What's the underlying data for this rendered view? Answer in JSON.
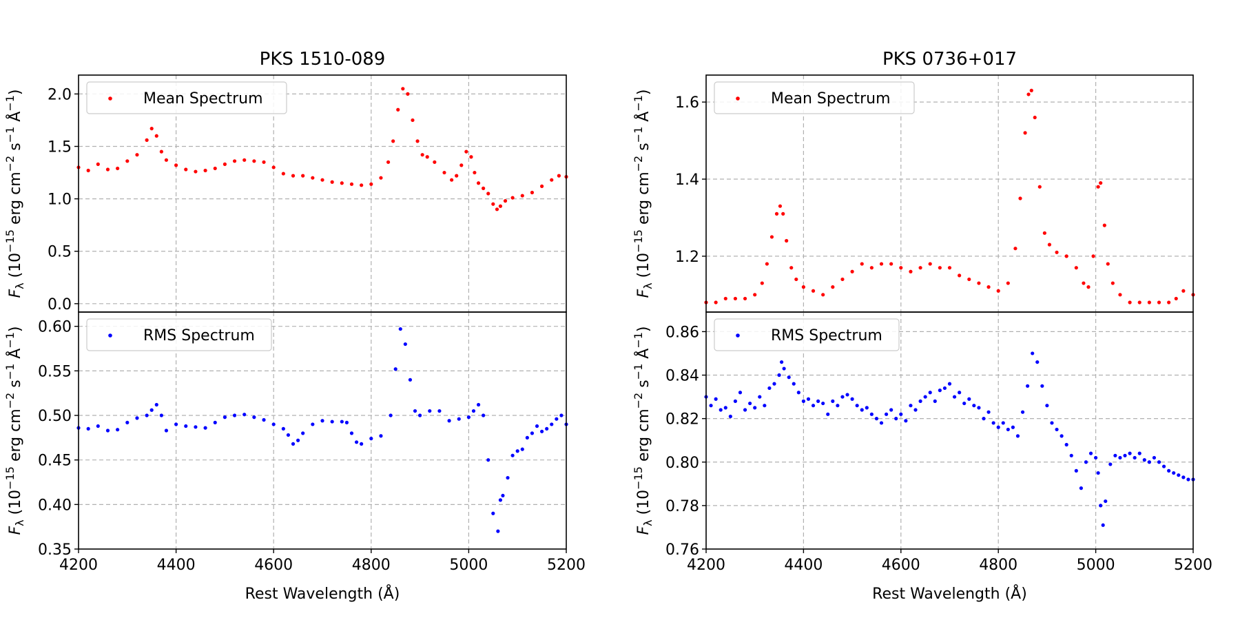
{
  "colors": {
    "mean": "#ff0000",
    "rms": "#0000ff",
    "grid": "#b0b0b0"
  },
  "chart_data": [
    {
      "type": "scatter",
      "title": "PKS 1510-089",
      "xlabel": "Rest Wavelength (Å)",
      "xlim": [
        4200,
        5200
      ],
      "xticks": [
        4200,
        4400,
        4600,
        4800,
        5000,
        5200
      ],
      "xtick_labels": [
        "4200",
        "4400",
        "4600",
        "4800",
        "5000",
        "5200"
      ],
      "panels": [
        {
          "id": "mean",
          "legend": "Mean Spectrum",
          "legend_position": "top-left",
          "ylabel": "F_λ (10^−15 erg cm^−2 s^−1 Å^−1)",
          "ylim": [
            -0.08,
            2.18
          ],
          "yticks": [
            0.0,
            0.5,
            1.0,
            1.5,
            2.0
          ],
          "ytick_labels": [
            "0.0",
            "0.5",
            "1.0",
            "1.5",
            "2.0"
          ],
          "series": {
            "name": "Mean Spectrum",
            "x": [
              4200,
              4220,
              4240,
              4260,
              4280,
              4300,
              4320,
              4340,
              4350,
              4360,
              4370,
              4380,
              4400,
              4420,
              4440,
              4460,
              4480,
              4500,
              4520,
              4540,
              4560,
              4580,
              4600,
              4620,
              4640,
              4660,
              4680,
              4700,
              4720,
              4740,
              4760,
              4780,
              4800,
              4820,
              4835,
              4845,
              4855,
              4865,
              4875,
              4885,
              4895,
              4905,
              4915,
              4930,
              4950,
              4965,
              4975,
              4985,
              4995,
              5005,
              5012,
              5020,
              5030,
              5040,
              5050,
              5058,
              5065,
              5075,
              5090,
              5110,
              5130,
              5150,
              5170,
              5185,
              5200
            ],
            "y": [
              1.3,
              1.27,
              1.33,
              1.28,
              1.29,
              1.36,
              1.42,
              1.56,
              1.67,
              1.6,
              1.45,
              1.37,
              1.32,
              1.28,
              1.26,
              1.27,
              1.29,
              1.33,
              1.36,
              1.37,
              1.36,
              1.35,
              1.3,
              1.24,
              1.22,
              1.22,
              1.2,
              1.18,
              1.16,
              1.15,
              1.14,
              1.13,
              1.14,
              1.2,
              1.35,
              1.55,
              1.85,
              2.05,
              2.0,
              1.75,
              1.55,
              1.42,
              1.4,
              1.35,
              1.25,
              1.18,
              1.22,
              1.32,
              1.45,
              1.4,
              1.25,
              1.15,
              1.1,
              1.05,
              0.95,
              0.9,
              0.93,
              0.98,
              1.01,
              1.03,
              1.06,
              1.12,
              1.18,
              1.22,
              1.21
            ]
          }
        },
        {
          "id": "rms",
          "legend": "RMS Spectrum",
          "legend_position": "top-left",
          "ylabel": "F_λ (10^−15 erg cm^−2 s^−1 Å^−1)",
          "ylim": [
            0.35,
            0.616
          ],
          "yticks": [
            0.35,
            0.4,
            0.45,
            0.5,
            0.55,
            0.6
          ],
          "ytick_labels": [
            "0.35",
            "0.40",
            "0.45",
            "0.50",
            "0.55",
            "0.60"
          ],
          "series": {
            "name": "RMS Spectrum",
            "x": [
              4200,
              4220,
              4240,
              4260,
              4280,
              4300,
              4320,
              4340,
              4350,
              4360,
              4370,
              4380,
              4400,
              4420,
              4440,
              4460,
              4480,
              4500,
              4520,
              4540,
              4560,
              4580,
              4600,
              4620,
              4630,
              4640,
              4650,
              4660,
              4680,
              4700,
              4720,
              4740,
              4750,
              4760,
              4770,
              4780,
              4800,
              4820,
              4840,
              4850,
              4860,
              4870,
              4880,
              4890,
              4900,
              4920,
              4940,
              4960,
              4980,
              5000,
              5010,
              5020,
              5030,
              5040,
              5050,
              5060,
              5065,
              5070,
              5080,
              5090,
              5100,
              5110,
              5120,
              5130,
              5140,
              5150,
              5160,
              5170,
              5180,
              5190,
              5200
            ],
            "y": [
              0.486,
              0.485,
              0.488,
              0.483,
              0.484,
              0.492,
              0.497,
              0.5,
              0.506,
              0.512,
              0.5,
              0.483,
              0.49,
              0.488,
              0.487,
              0.486,
              0.492,
              0.498,
              0.5,
              0.501,
              0.498,
              0.495,
              0.49,
              0.485,
              0.478,
              0.468,
              0.472,
              0.48,
              0.49,
              0.494,
              0.493,
              0.493,
              0.492,
              0.48,
              0.47,
              0.468,
              0.474,
              0.477,
              0.5,
              0.552,
              0.597,
              0.58,
              0.54,
              0.505,
              0.5,
              0.505,
              0.505,
              0.494,
              0.496,
              0.498,
              0.505,
              0.512,
              0.5,
              0.45,
              0.39,
              0.37,
              0.405,
              0.41,
              0.43,
              0.455,
              0.46,
              0.462,
              0.475,
              0.48,
              0.488,
              0.482,
              0.485,
              0.49,
              0.496,
              0.5,
              0.49
            ]
          }
        }
      ]
    },
    {
      "type": "scatter",
      "title": "PKS 0736+017",
      "xlabel": "Rest Wavelength (Å)",
      "xlim": [
        4200,
        5200
      ],
      "xticks": [
        4200,
        4400,
        4600,
        4800,
        5000,
        5200
      ],
      "xtick_labels": [
        "4200",
        "4400",
        "4600",
        "4800",
        "5000",
        "5200"
      ],
      "panels": [
        {
          "id": "mean",
          "legend": "Mean Spectrum",
          "legend_position": "top-left",
          "ylabel": "F_λ (10^−15 erg cm^−2 s^−1 Å^−1)",
          "ylim": [
            1.055,
            1.67
          ],
          "yticks": [
            1.2,
            1.4,
            1.6
          ],
          "ytick_labels": [
            "1.2",
            "1.4",
            "1.6"
          ],
          "series": {
            "name": "Mean Spectrum",
            "x": [
              4200,
              4220,
              4240,
              4260,
              4280,
              4300,
              4315,
              4325,
              4335,
              4345,
              4352,
              4358,
              4365,
              4375,
              4385,
              4400,
              4420,
              4440,
              4460,
              4480,
              4500,
              4520,
              4540,
              4560,
              4580,
              4600,
              4620,
              4640,
              4660,
              4680,
              4700,
              4720,
              4740,
              4760,
              4780,
              4800,
              4820,
              4835,
              4845,
              4855,
              4862,
              4868,
              4875,
              4885,
              4895,
              4905,
              4920,
              4940,
              4960,
              4975,
              4985,
              4995,
              5005,
              5010,
              5018,
              5025,
              5035,
              5050,
              5070,
              5090,
              5110,
              5130,
              5150,
              5165,
              5180,
              5200
            ],
            "y": [
              1.08,
              1.08,
              1.09,
              1.09,
              1.09,
              1.1,
              1.13,
              1.18,
              1.25,
              1.31,
              1.33,
              1.31,
              1.24,
              1.17,
              1.14,
              1.12,
              1.11,
              1.1,
              1.12,
              1.14,
              1.16,
              1.18,
              1.17,
              1.18,
              1.18,
              1.17,
              1.16,
              1.17,
              1.18,
              1.17,
              1.17,
              1.15,
              1.14,
              1.13,
              1.12,
              1.11,
              1.13,
              1.22,
              1.35,
              1.52,
              1.62,
              1.63,
              1.56,
              1.38,
              1.26,
              1.23,
              1.21,
              1.2,
              1.17,
              1.13,
              1.12,
              1.2,
              1.38,
              1.39,
              1.28,
              1.18,
              1.13,
              1.1,
              1.08,
              1.08,
              1.08,
              1.08,
              1.08,
              1.09,
              1.11,
              1.1
            ]
          }
        },
        {
          "id": "rms",
          "legend": "RMS Spectrum",
          "legend_position": "top-left",
          "ylabel": "F_λ (10^−15 erg cm^−2 s^−1 Å^−1)",
          "ylim": [
            0.76,
            0.869
          ],
          "yticks": [
            0.76,
            0.78,
            0.8,
            0.82,
            0.84,
            0.86
          ],
          "ytick_labels": [
            "0.76",
            "0.78",
            "0.80",
            "0.82",
            "0.84",
            "0.86"
          ],
          "series": {
            "name": "RMS Spectrum",
            "x": [
              4200,
              4210,
              4220,
              4230,
              4240,
              4250,
              4260,
              4270,
              4280,
              4290,
              4300,
              4310,
              4320,
              4330,
              4340,
              4350,
              4355,
              4360,
              4370,
              4380,
              4390,
              4400,
              4410,
              4420,
              4430,
              4440,
              4450,
              4460,
              4470,
              4480,
              4490,
              4500,
              4510,
              4520,
              4530,
              4540,
              4550,
              4560,
              4570,
              4580,
              4590,
              4600,
              4610,
              4620,
              4630,
              4640,
              4650,
              4660,
              4670,
              4680,
              4690,
              4700,
              4710,
              4720,
              4730,
              4740,
              4750,
              4760,
              4770,
              4780,
              4790,
              4800,
              4810,
              4820,
              4830,
              4840,
              4850,
              4860,
              4870,
              4880,
              4890,
              4900,
              4910,
              4920,
              4930,
              4940,
              4950,
              4960,
              4970,
              4980,
              4990,
              5000,
              5005,
              5010,
              5015,
              5020,
              5030,
              5040,
              5050,
              5060,
              5070,
              5080,
              5090,
              5100,
              5110,
              5120,
              5130,
              5140,
              5150,
              5160,
              5170,
              5180,
              5190,
              5200
            ],
            "y": [
              0.83,
              0.826,
              0.829,
              0.824,
              0.825,
              0.821,
              0.828,
              0.832,
              0.824,
              0.827,
              0.825,
              0.83,
              0.826,
              0.834,
              0.836,
              0.84,
              0.846,
              0.843,
              0.839,
              0.836,
              0.832,
              0.828,
              0.829,
              0.826,
              0.828,
              0.827,
              0.822,
              0.828,
              0.826,
              0.83,
              0.831,
              0.829,
              0.826,
              0.824,
              0.825,
              0.822,
              0.82,
              0.818,
              0.822,
              0.824,
              0.82,
              0.822,
              0.819,
              0.826,
              0.824,
              0.828,
              0.83,
              0.832,
              0.828,
              0.833,
              0.834,
              0.836,
              0.83,
              0.832,
              0.827,
              0.829,
              0.826,
              0.825,
              0.82,
              0.823,
              0.818,
              0.816,
              0.818,
              0.815,
              0.816,
              0.812,
              0.823,
              0.835,
              0.85,
              0.846,
              0.835,
              0.826,
              0.818,
              0.815,
              0.812,
              0.808,
              0.803,
              0.796,
              0.788,
              0.8,
              0.804,
              0.802,
              0.795,
              0.78,
              0.771,
              0.782,
              0.799,
              0.803,
              0.802,
              0.803,
              0.804,
              0.802,
              0.804,
              0.801,
              0.8,
              0.802,
              0.8,
              0.798,
              0.796,
              0.795,
              0.794,
              0.793,
              0.792,
              0.792
            ]
          }
        }
      ]
    }
  ]
}
